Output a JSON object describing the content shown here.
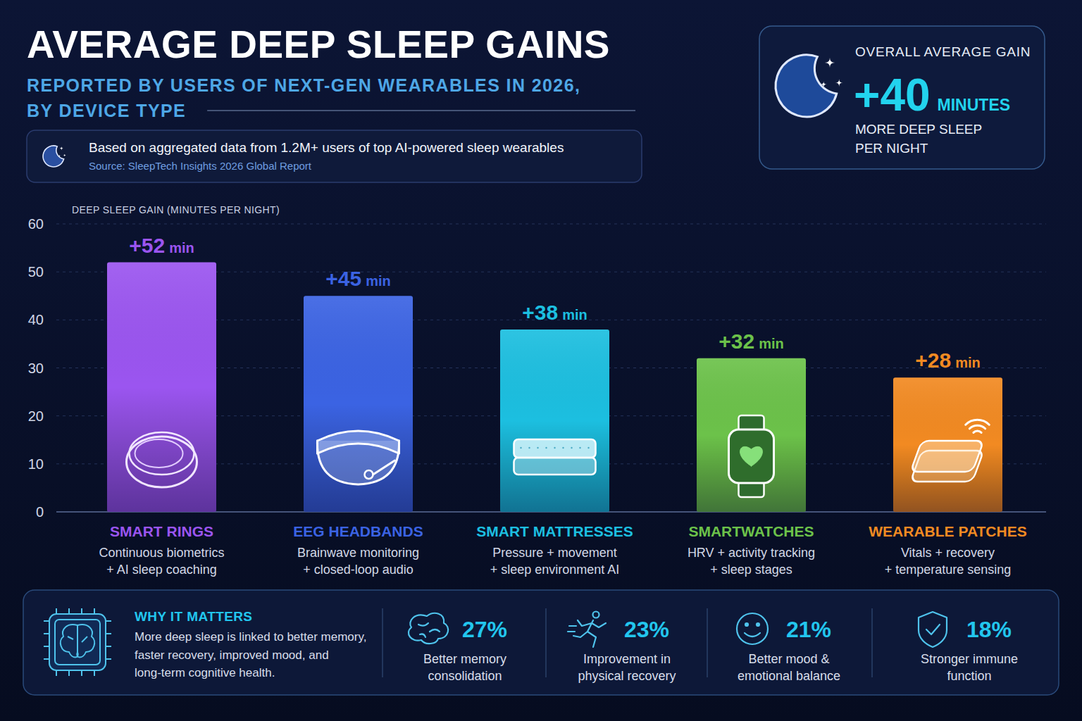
{
  "chart_data": {
    "type": "bar",
    "title": "AVERAGE DEEP SLEEP GAINS",
    "subtitle": [
      "REPORTED BY USERS OF NEXT-GEN WEARABLES IN 2026,",
      "BY DEVICE TYPE"
    ],
    "note": "Based on aggregated data from 1.2M+ users of top AI-powered sleep wearables",
    "source": "Source: SleepTech Insights 2026 Global Report",
    "summary": {
      "heading": "OVERALL AVERAGE GAIN",
      "value_label": "+40",
      "unit": "MINUTES",
      "caption": [
        "MORE DEEP SLEEP",
        "PER NIGHT"
      ]
    },
    "y_label": "DEEP SLEEP GAIN (MINUTES PER NIGHT)",
    "categories": [
      "SMART RINGS",
      "EEG HEADBANDS",
      "SMART MATTRESSES",
      "SMARTWATCHES",
      "WEARABLE PATCHES"
    ],
    "descriptions": [
      [
        "Continuous biometrics",
        "+ AI sleep coaching"
      ],
      [
        "Brainwave monitoring",
        "+ closed-loop audio"
      ],
      [
        "Pressure + movement",
        "+ sleep environment AI"
      ],
      [
        "HRV + activity tracking",
        "+ sleep stages"
      ],
      [
        "Vitals + recovery",
        "+ temperature sensing"
      ]
    ],
    "values": [
      52,
      45,
      38,
      32,
      28
    ],
    "value_labels": [
      "+52 min",
      "+45 min",
      "+38 min",
      "+32 min",
      "+28 min"
    ],
    "colors": [
      "#9b55f0",
      "#3b63e3",
      "#1cbfe0",
      "#6cc24a",
      "#f28a22"
    ],
    "ylim": [
      0,
      60
    ],
    "yticks": [
      0,
      10,
      20,
      30,
      40,
      50,
      60
    ],
    "grid": true,
    "data_labels": true,
    "why_it_matters": {
      "heading": "WHY IT MATTERS",
      "text": "More deep sleep is linked to better memory, faster recovery, improved mood, and long-term cognitive health.",
      "stats": [
        {
          "value": "27%",
          "label": "Better memory consolidation"
        },
        {
          "value": "23%",
          "label": "Improvement in physical recovery"
        },
        {
          "value": "21%",
          "label": "Better mood & emotional balance"
        },
        {
          "value": "18%",
          "label": "Stronger immune function"
        }
      ]
    }
  }
}
